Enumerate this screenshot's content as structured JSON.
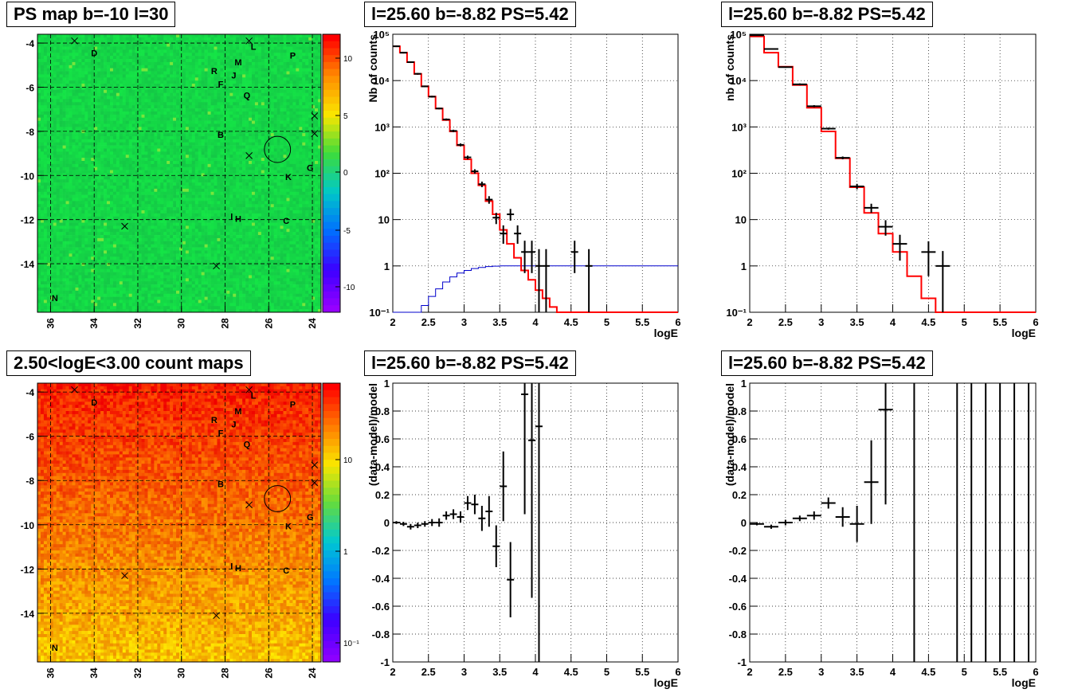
{
  "titles": {
    "map_top": "PS map b=-10 l=30",
    "map_bottom": "2.50<logE<3.00 count maps",
    "spec_left": "l=25.60 b=-8.82 PS=5.42",
    "spec_right": "l=25.60 b=-8.82 PS=5.42",
    "res_left": "l=25.60 b=-8.82 PS=5.42",
    "res_right": "l=25.60 b=-8.82 PS=5.42"
  },
  "axis_labels": {
    "logE": "logE",
    "nb_counts": "Nb of counts",
    "nb_counts_lower": "nb of counts",
    "residual": "(data-model)/model"
  },
  "colors": {
    "data": "#000000",
    "model": "#ff0000",
    "efficiency": "#0000cc"
  },
  "maps": {
    "x_ticks": [
      "36",
      "34",
      "32",
      "30",
      "28",
      "26",
      "24"
    ],
    "y_ticks": [
      "-4",
      "-6",
      "-8",
      "-10",
      "-12",
      "-14"
    ],
    "ps_palette_ticks": [
      "10",
      "5",
      "0",
      "-5",
      "-10"
    ],
    "count_palette_ticks": [
      "10",
      "1",
      "10⁻¹"
    ],
    "sources": [
      {
        "label": "D",
        "l": 34.0,
        "b": -4.6
      },
      {
        "label": "L",
        "l": 26.7,
        "b": -4.3
      },
      {
        "label": "P",
        "l": 24.9,
        "b": -4.7
      },
      {
        "label": "M",
        "l": 27.4,
        "b": -5.0
      },
      {
        "label": "R",
        "l": 28.5,
        "b": -5.4
      },
      {
        "label": "J",
        "l": 27.6,
        "b": -5.6
      },
      {
        "label": "F",
        "l": 28.2,
        "b": -6.0
      },
      {
        "label": "Q",
        "l": 27.0,
        "b": -6.5
      },
      {
        "label": "B",
        "l": 28.2,
        "b": -8.3
      },
      {
        "label": "K",
        "l": 25.1,
        "b": -10.2
      },
      {
        "label": "G",
        "l": 24.1,
        "b": -9.8
      },
      {
        "label": "I",
        "l": 27.7,
        "b": -12.0
      },
      {
        "label": "H",
        "l": 27.4,
        "b": -12.1
      },
      {
        "label": "C",
        "l": 25.2,
        "b": -12.2
      },
      {
        "label": "N",
        "l": 35.8,
        "b": -15.7
      }
    ],
    "crosses": [
      {
        "l": 34.9,
        "b": -3.9
      },
      {
        "l": 26.9,
        "b": -3.9
      },
      {
        "l": 23.9,
        "b": -7.3
      },
      {
        "l": 23.9,
        "b": -8.1
      },
      {
        "l": 26.9,
        "b": -9.1
      },
      {
        "l": 32.6,
        "b": -12.3
      },
      {
        "l": 28.4,
        "b": -14.1
      }
    ],
    "circle": {
      "l": 25.6,
      "b": -8.82,
      "r": 0.6
    }
  },
  "chart_data": [
    {
      "type": "step",
      "panel": "spec_left",
      "title": "l=25.60 b=-8.82 PS=5.42",
      "xlabel": "logE",
      "ylabel": "Nb of counts",
      "xlim": [
        2,
        6
      ],
      "ylim": [
        0.1,
        100000
      ],
      "yscale": "log",
      "grid": true,
      "x_ticks": [
        2,
        2.5,
        3,
        3.5,
        4,
        4.5,
        5,
        5.5,
        6
      ],
      "y_ticks": [
        0.1,
        1,
        10,
        100,
        1000,
        10000,
        100000
      ],
      "y_tick_labels": [
        "10⁻¹",
        "1",
        "10",
        "10²",
        "10³",
        "10⁴",
        "10⁵"
      ],
      "model_steps": {
        "edges": [
          2.0,
          2.1,
          2.2,
          2.3,
          2.4,
          2.5,
          2.6,
          2.7,
          2.8,
          2.9,
          3.0,
          3.1,
          3.2,
          3.3,
          3.4,
          3.5,
          3.6,
          3.7,
          3.8,
          3.9,
          4.0,
          4.1,
          4.2,
          4.3,
          4.4,
          4.5,
          6.0
        ],
        "values": [
          55000,
          40000,
          25000,
          14000,
          7500,
          4500,
          2500,
          1400,
          800,
          400,
          200,
          100,
          55,
          25,
          13,
          6,
          3,
          1.5,
          0.8,
          0.5,
          0.3,
          0.2,
          0.13,
          0.1,
          0.1,
          0.1
        ]
      },
      "efficiency_steps": {
        "edges": [
          2.0,
          2.4,
          2.5,
          2.6,
          2.7,
          2.8,
          2.9,
          3.0,
          3.1,
          3.2,
          3.3,
          3.4,
          3.5,
          3.6,
          6.0
        ],
        "values": [
          0.1,
          0.14,
          0.22,
          0.32,
          0.45,
          0.58,
          0.7,
          0.8,
          0.88,
          0.93,
          0.97,
          0.99,
          1.0,
          1.0
        ]
      },
      "data_points": [
        {
          "x": 2.05,
          "y": 55000,
          "xerr": 0.05,
          "lo": 53000,
          "hi": 57000
        },
        {
          "x": 2.15,
          "y": 40000,
          "xerr": 0.05,
          "lo": 38500,
          "hi": 41500
        },
        {
          "x": 2.25,
          "y": 25000,
          "xerr": 0.05,
          "lo": 24000,
          "hi": 26000
        },
        {
          "x": 2.35,
          "y": 14000,
          "xerr": 0.05,
          "lo": 13400,
          "hi": 14600
        },
        {
          "x": 2.45,
          "y": 7500,
          "xerr": 0.05,
          "lo": 7200,
          "hi": 7800
        },
        {
          "x": 2.55,
          "y": 4500,
          "xerr": 0.05,
          "lo": 4300,
          "hi": 4700
        },
        {
          "x": 2.65,
          "y": 2500,
          "xerr": 0.05,
          "lo": 2400,
          "hi": 2600
        },
        {
          "x": 2.75,
          "y": 1450,
          "xerr": 0.05,
          "lo": 1380,
          "hi": 1520
        },
        {
          "x": 2.85,
          "y": 820,
          "xerr": 0.05,
          "lo": 770,
          "hi": 870
        },
        {
          "x": 2.95,
          "y": 410,
          "xerr": 0.05,
          "lo": 380,
          "hi": 440
        },
        {
          "x": 3.05,
          "y": 220,
          "xerr": 0.05,
          "lo": 200,
          "hi": 240
        },
        {
          "x": 3.15,
          "y": 110,
          "xerr": 0.05,
          "lo": 98,
          "hi": 122
        },
        {
          "x": 3.25,
          "y": 58,
          "xerr": 0.05,
          "lo": 50,
          "hi": 66
        },
        {
          "x": 3.35,
          "y": 27,
          "xerr": 0.05,
          "lo": 22,
          "hi": 32
        },
        {
          "x": 3.45,
          "y": 11,
          "xerr": 0.05,
          "lo": 8,
          "hi": 14
        },
        {
          "x": 3.55,
          "y": 5,
          "xerr": 0.05,
          "lo": 3,
          "hi": 7.5
        },
        {
          "x": 3.65,
          "y": 13,
          "xerr": 0.05,
          "lo": 9.5,
          "hi": 17
        },
        {
          "x": 3.75,
          "y": 5,
          "xerr": 0.05,
          "lo": 3,
          "hi": 7.5
        },
        {
          "x": 3.85,
          "y": 2,
          "xerr": 0.05,
          "lo": 0.7,
          "hi": 3.5
        },
        {
          "x": 3.95,
          "y": 2,
          "xerr": 0.05,
          "lo": 0.7,
          "hi": 3.5
        },
        {
          "x": 4.05,
          "y": 1,
          "xerr": 0.05,
          "lo": 0.1,
          "hi": 2.3
        },
        {
          "x": 4.15,
          "y": 1,
          "xerr": 0.05,
          "lo": 0.1,
          "hi": 2.3
        },
        {
          "x": 4.55,
          "y": 2,
          "xerr": 0.05,
          "lo": 0.7,
          "hi": 3.5
        },
        {
          "x": 4.75,
          "y": 1,
          "xerr": 0.05,
          "lo": 0.1,
          "hi": 2.3
        }
      ]
    },
    {
      "type": "step",
      "panel": "spec_right",
      "title": "l=25.60 b=-8.82 PS=5.42",
      "xlabel": "logE",
      "ylabel": "nb of counts",
      "xlim": [
        2,
        6
      ],
      "ylim": [
        0.1,
        100000
      ],
      "yscale": "log",
      "grid": true,
      "x_ticks": [
        2,
        2.5,
        3,
        3.5,
        4,
        4.5,
        5,
        5.5,
        6
      ],
      "y_ticks": [
        0.1,
        1,
        10,
        100,
        1000,
        10000,
        100000
      ],
      "y_tick_labels": [
        "10⁻¹",
        "1",
        "10",
        "10²",
        "10³",
        "10⁴",
        "10⁵"
      ],
      "model_steps": {
        "edges": [
          2.0,
          2.2,
          2.4,
          2.6,
          2.8,
          3.0,
          3.2,
          3.4,
          3.6,
          3.8,
          4.0,
          4.2,
          4.4,
          4.6,
          4.8,
          6.0
        ],
        "values": [
          90000,
          40000,
          20000,
          8000,
          2600,
          800,
          210,
          50,
          14,
          5,
          2,
          0.6,
          0.2,
          0.1,
          0.1
        ]
      },
      "data_points": [
        {
          "x": 2.1,
          "y": 95000,
          "xerr": 0.1,
          "lo": 93000,
          "hi": 97000
        },
        {
          "x": 2.3,
          "y": 48000,
          "xerr": 0.1,
          "lo": 46500,
          "hi": 49500
        },
        {
          "x": 2.5,
          "y": 19500,
          "xerr": 0.1,
          "lo": 18800,
          "hi": 20200
        },
        {
          "x": 2.7,
          "y": 8300,
          "xerr": 0.1,
          "lo": 7900,
          "hi": 8700
        },
        {
          "x": 2.9,
          "y": 2800,
          "xerr": 0.1,
          "lo": 2650,
          "hi": 2950
        },
        {
          "x": 3.1,
          "y": 920,
          "xerr": 0.1,
          "lo": 870,
          "hi": 970
        },
        {
          "x": 3.3,
          "y": 215,
          "xerr": 0.1,
          "lo": 200,
          "hi": 230
        },
        {
          "x": 3.5,
          "y": 52,
          "xerr": 0.1,
          "lo": 45,
          "hi": 59
        },
        {
          "x": 3.7,
          "y": 18,
          "xerr": 0.1,
          "lo": 14,
          "hi": 22
        },
        {
          "x": 3.9,
          "y": 7,
          "xerr": 0.1,
          "lo": 4.5,
          "hi": 9.7
        },
        {
          "x": 4.1,
          "y": 3,
          "xerr": 0.1,
          "lo": 1.3,
          "hi": 4.7
        },
        {
          "x": 4.5,
          "y": 2,
          "xerr": 0.1,
          "lo": 0.6,
          "hi": 3.4
        },
        {
          "x": 4.7,
          "y": 1,
          "xerr": 0.1,
          "lo": 0.1,
          "hi": 2.1
        }
      ]
    },
    {
      "type": "errorbar",
      "panel": "res_left",
      "title": "l=25.60 b=-8.82 PS=5.42",
      "xlabel": "logE",
      "ylabel": "(data-model)/model",
      "xlim": [
        2,
        6
      ],
      "ylim": [
        -1,
        1
      ],
      "grid": true,
      "x_ticks": [
        2,
        2.5,
        3,
        3.5,
        4,
        4.5,
        5,
        5.5,
        6
      ],
      "y_ticks": [
        -1,
        -0.8,
        -0.6,
        -0.4,
        -0.2,
        0,
        0.2,
        0.4,
        0.6,
        0.8,
        1
      ],
      "data_points": [
        {
          "x": 2.05,
          "y": 0.0,
          "xerr": 0.05,
          "err": 0.01
        },
        {
          "x": 2.15,
          "y": -0.01,
          "xerr": 0.05,
          "err": 0.015
        },
        {
          "x": 2.25,
          "y": -0.03,
          "xerr": 0.05,
          "err": 0.02
        },
        {
          "x": 2.35,
          "y": -0.02,
          "xerr": 0.05,
          "err": 0.02
        },
        {
          "x": 2.45,
          "y": -0.01,
          "xerr": 0.05,
          "err": 0.02
        },
        {
          "x": 2.55,
          "y": 0.0,
          "xerr": 0.05,
          "err": 0.025
        },
        {
          "x": 2.65,
          "y": 0.0,
          "xerr": 0.05,
          "err": 0.03
        },
        {
          "x": 2.75,
          "y": 0.05,
          "xerr": 0.05,
          "err": 0.03
        },
        {
          "x": 2.85,
          "y": 0.06,
          "xerr": 0.05,
          "err": 0.035
        },
        {
          "x": 2.95,
          "y": 0.04,
          "xerr": 0.05,
          "err": 0.04
        },
        {
          "x": 3.05,
          "y": 0.14,
          "xerr": 0.05,
          "err": 0.05
        },
        {
          "x": 3.15,
          "y": 0.13,
          "xerr": 0.05,
          "err": 0.07
        },
        {
          "x": 3.25,
          "y": 0.03,
          "xerr": 0.05,
          "err": 0.09
        },
        {
          "x": 3.35,
          "y": 0.08,
          "xerr": 0.05,
          "err": 0.11
        },
        {
          "x": 3.45,
          "y": -0.17,
          "xerr": 0.05,
          "err": 0.15
        },
        {
          "x": 3.55,
          "y": 0.26,
          "xerr": 0.05,
          "err": 0.25
        },
        {
          "x": 3.65,
          "y": -0.41,
          "xerr": 0.05,
          "err": 0.27
        },
        {
          "x": 3.85,
          "y": 0.92,
          "xerr": 0.05,
          "err": 0.86
        },
        {
          "x": 3.95,
          "y": 0.59,
          "xerr": 0.05,
          "err": 1.13
        },
        {
          "x": 4.05,
          "y": 0.69,
          "xerr": 0.05,
          "err": 2.2
        }
      ]
    },
    {
      "type": "errorbar",
      "panel": "res_right",
      "title": "l=25.60 b=-8.82 PS=5.42",
      "xlabel": "logE",
      "ylabel": "(data-model)/model",
      "xlim": [
        2,
        6
      ],
      "ylim": [
        -1,
        1
      ],
      "grid": true,
      "x_ticks": [
        2,
        2.5,
        3,
        3.5,
        4,
        4.5,
        5,
        5.5,
        6
      ],
      "y_ticks": [
        -1,
        -0.8,
        -0.6,
        -0.4,
        -0.2,
        0,
        0.2,
        0.4,
        0.6,
        0.8,
        1
      ],
      "data_points": [
        {
          "x": 2.1,
          "y": -0.01,
          "xerr": 0.1,
          "err": 0.01
        },
        {
          "x": 2.3,
          "y": -0.03,
          "xerr": 0.1,
          "err": 0.015
        },
        {
          "x": 2.5,
          "y": 0.0,
          "xerr": 0.1,
          "err": 0.02
        },
        {
          "x": 2.7,
          "y": 0.03,
          "xerr": 0.1,
          "err": 0.02
        },
        {
          "x": 2.9,
          "y": 0.05,
          "xerr": 0.1,
          "err": 0.03
        },
        {
          "x": 3.1,
          "y": 0.14,
          "xerr": 0.1,
          "err": 0.04
        },
        {
          "x": 3.3,
          "y": 0.04,
          "xerr": 0.1,
          "err": 0.07
        },
        {
          "x": 3.5,
          "y": -0.01,
          "xerr": 0.1,
          "err": 0.13
        },
        {
          "x": 3.7,
          "y": 0.29,
          "xerr": 0.1,
          "err": 0.3
        },
        {
          "x": 3.9,
          "y": 0.81,
          "xerr": 0.1,
          "err": 0.68
        }
      ],
      "full_span_bars_x": [
        4.3,
        4.9,
        5.1,
        5.3,
        5.5,
        5.7,
        5.9
      ]
    }
  ]
}
